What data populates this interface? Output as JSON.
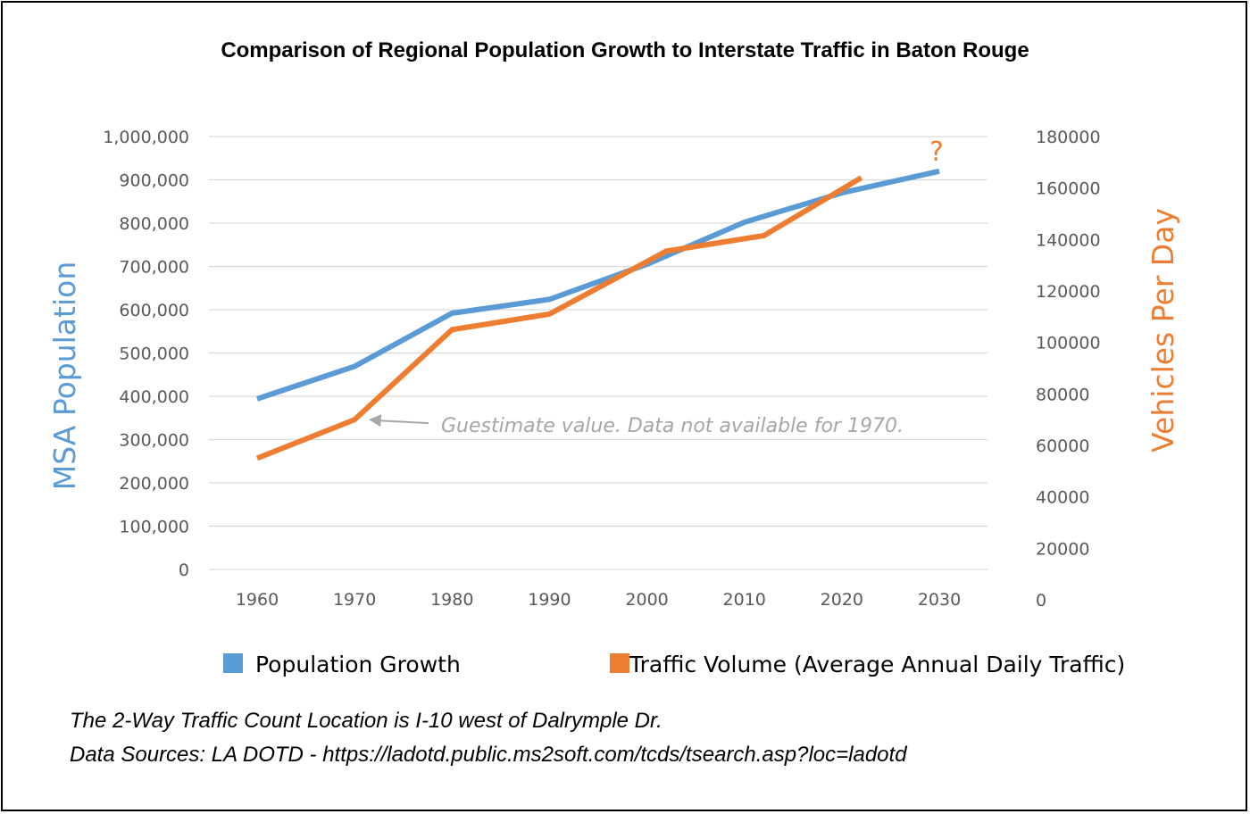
{
  "chart_data": {
    "type": "line",
    "title": "Comparison of Regional Population Growth to Interstate Traffic in Baton Rouge",
    "x_ticks": [
      "1960",
      "1970",
      "1980",
      "1990",
      "2000",
      "2010",
      "2020",
      "2030"
    ],
    "xlim": [
      1960,
      2030
    ],
    "y_left": {
      "label": "MSA Population",
      "range": [
        0,
        1000000
      ],
      "ticks": [
        "0",
        "100,000",
        "200,000",
        "300,000",
        "400,000",
        "500,000",
        "600,000",
        "700,000",
        "800,000",
        "900,000",
        "1,000,000"
      ],
      "color": "#5B9BD5"
    },
    "y_right": {
      "label": "Vehicles Per Day",
      "range": [
        0,
        180000
      ],
      "ticks": [
        "0",
        "20000",
        "40000",
        "60000",
        "80000",
        "100000",
        "120000",
        "140000",
        "160000",
        "180000"
      ],
      "color": "#ED7D31"
    },
    "series": [
      {
        "name": "Population Growth",
        "axis": "left",
        "color": "#5B9BD5",
        "points": [
          [
            1960,
            394000
          ],
          [
            1970,
            469000
          ],
          [
            1980,
            592000
          ],
          [
            1990,
            624000
          ],
          [
            2000,
            705000
          ],
          [
            2010,
            802000
          ],
          [
            2020,
            870000
          ],
          [
            2030,
            920000
          ]
        ]
      },
      {
        "name": "Traffic Volume (Average Annual Daily Traffic)",
        "axis": "right",
        "color": "#ED7D31",
        "points": [
          [
            1960,
            55000
          ],
          [
            1970,
            70000
          ],
          [
            1980,
            105000
          ],
          [
            1990,
            111000
          ],
          [
            2002,
            135500
          ],
          [
            2012,
            141500
          ],
          [
            2022,
            164000
          ]
        ]
      }
    ],
    "annotations": {
      "question_mark": "?",
      "guestimate_note": "Guestimate value. Data not available for 1970."
    },
    "grid": true,
    "legend_position": "bottom"
  },
  "footnotes": {
    "line1": "The 2-Way Traffic Count Location is I-10 west of Dalrymple Dr.",
    "line2": "Data Sources: LA DOTD - https://ladotd.public.ms2soft.com/tcds/tsearch.asp?loc=ladotd"
  }
}
